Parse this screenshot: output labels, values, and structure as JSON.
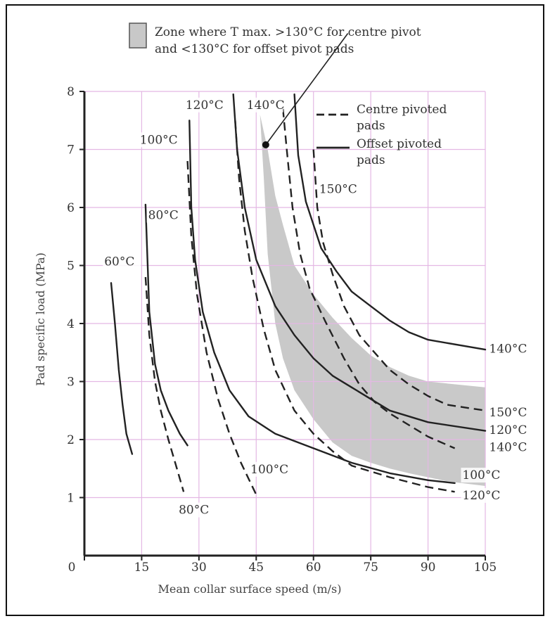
{
  "chart_data": {
    "type": "line",
    "xlabel": "Mean collar surface speed (m/s)",
    "ylabel": "Pad specific load (MPa)",
    "xlim": [
      0,
      105
    ],
    "ylim": [
      0,
      8
    ],
    "x_ticks": [
      "0",
      "15",
      "30",
      "45",
      "60",
      "75",
      "90",
      "105"
    ],
    "y_ticks": [
      "1",
      "2",
      "3",
      "4",
      "5",
      "6",
      "7",
      "8"
    ],
    "grid": true,
    "grid_color": "#e4b8e4",
    "legend": {
      "zone_text_1": "Zone where T max. >130°C for centre pivot",
      "zone_text_2": "and <130°C for offset pivot pads",
      "centre_1": "Centre pivoted",
      "centre_2": "pads",
      "offset_1": "Offset pivoted",
      "offset_2": "pads"
    },
    "zone": {
      "upper": [
        [
          46,
          7.6
        ],
        [
          48,
          7.0
        ],
        [
          50,
          6.2
        ],
        [
          52,
          5.7
        ],
        [
          55,
          5.0
        ],
        [
          60,
          4.5
        ],
        [
          65,
          4.1
        ],
        [
          70,
          3.75
        ],
        [
          75,
          3.45
        ],
        [
          80,
          3.25
        ],
        [
          85,
          3.1
        ],
        [
          90,
          3.0
        ],
        [
          105,
          2.9
        ]
      ],
      "lower": [
        [
          105,
          1.2
        ],
        [
          95,
          1.28
        ],
        [
          90,
          1.35
        ],
        [
          85,
          1.42
        ],
        [
          80,
          1.5
        ],
        [
          75,
          1.6
        ],
        [
          70,
          1.72
        ],
        [
          65,
          1.95
        ],
        [
          60,
          2.35
        ],
        [
          55,
          2.85
        ],
        [
          52,
          3.4
        ],
        [
          50,
          4.0
        ],
        [
          48,
          5.2
        ],
        [
          47,
          6.5
        ],
        [
          46,
          7.6
        ]
      ]
    },
    "series": [
      {
        "style": "solid",
        "points": [
          [
            7,
            4.7
          ],
          [
            8,
            4.0
          ],
          [
            9,
            3.2
          ],
          [
            10,
            2.6
          ],
          [
            11,
            2.1
          ],
          [
            12.5,
            1.75
          ]
        ]
      },
      {
        "style": "solid",
        "points": [
          [
            16,
            6.05
          ],
          [
            17,
            4.2
          ],
          [
            18.5,
            3.3
          ],
          [
            20,
            2.85
          ],
          [
            22,
            2.5
          ],
          [
            25,
            2.1
          ],
          [
            27,
            1.9
          ]
        ]
      },
      {
        "style": "solid",
        "points": [
          [
            27.5,
            7.5
          ],
          [
            28,
            6.0
          ],
          [
            29,
            5.1
          ],
          [
            31,
            4.2
          ],
          [
            34,
            3.5
          ],
          [
            38,
            2.85
          ],
          [
            43,
            2.4
          ],
          [
            50,
            2.1
          ],
          [
            60,
            1.85
          ],
          [
            70,
            1.6
          ],
          [
            80,
            1.42
          ],
          [
            90,
            1.3
          ],
          [
            97,
            1.25
          ]
        ]
      },
      {
        "style": "solid",
        "points": [
          [
            39,
            7.95
          ],
          [
            40,
            7.0
          ],
          [
            42,
            6.0
          ],
          [
            45,
            5.1
          ],
          [
            50,
            4.3
          ],
          [
            55,
            3.8
          ],
          [
            60,
            3.4
          ],
          [
            65,
            3.1
          ],
          [
            70,
            2.9
          ],
          [
            75,
            2.7
          ],
          [
            80,
            2.5
          ],
          [
            90,
            2.3
          ],
          [
            105,
            2.15
          ]
        ]
      },
      {
        "style": "solid",
        "points": [
          [
            55,
            7.95
          ],
          [
            56,
            6.9
          ],
          [
            58,
            6.1
          ],
          [
            62,
            5.3
          ],
          [
            66,
            4.9
          ],
          [
            70,
            4.55
          ],
          [
            75,
            4.3
          ],
          [
            80,
            4.05
          ],
          [
            85,
            3.85
          ],
          [
            90,
            3.72
          ],
          [
            105,
            3.55
          ]
        ]
      },
      {
        "style": "dashed",
        "points": [
          [
            16,
            4.8
          ],
          [
            17,
            3.8
          ],
          [
            18.5,
            3.0
          ],
          [
            20,
            2.5
          ],
          [
            22,
            2.0
          ],
          [
            24,
            1.55
          ],
          [
            26,
            1.1
          ]
        ]
      },
      {
        "style": "dashed",
        "points": [
          [
            27,
            6.8
          ],
          [
            28,
            5.5
          ],
          [
            29.5,
            4.5
          ],
          [
            32,
            3.5
          ],
          [
            35,
            2.7
          ],
          [
            38,
            2.1
          ],
          [
            41,
            1.6
          ],
          [
            45,
            1.05
          ]
        ]
      },
      {
        "style": "dashed",
        "points": [
          [
            39.5,
            7.5
          ],
          [
            40.5,
            6.5
          ],
          [
            42,
            5.6
          ],
          [
            44,
            4.8
          ],
          [
            47,
            3.9
          ],
          [
            50,
            3.2
          ],
          [
            55,
            2.5
          ],
          [
            60,
            2.1
          ],
          [
            65,
            1.8
          ],
          [
            70,
            1.55
          ],
          [
            80,
            1.35
          ],
          [
            90,
            1.18
          ],
          [
            97,
            1.1
          ]
        ]
      },
      {
        "style": "dashed",
        "points": [
          [
            52,
            7.7
          ],
          [
            53,
            7.0
          ],
          [
            54.5,
            6.0
          ],
          [
            56.5,
            5.2
          ],
          [
            59,
            4.6
          ],
          [
            63,
            4.05
          ],
          [
            68,
            3.4
          ],
          [
            72,
            2.95
          ],
          [
            76,
            2.65
          ],
          [
            80,
            2.45
          ],
          [
            85,
            2.25
          ],
          [
            90,
            2.05
          ],
          [
            97,
            1.85
          ]
        ]
      },
      {
        "style": "dashed",
        "points": [
          [
            60,
            7.0
          ],
          [
            61,
            6.0
          ],
          [
            62.5,
            5.4
          ],
          [
            65,
            4.85
          ],
          [
            68,
            4.3
          ],
          [
            72,
            3.8
          ],
          [
            76,
            3.5
          ],
          [
            80,
            3.2
          ],
          [
            85,
            2.95
          ],
          [
            90,
            2.75
          ],
          [
            95,
            2.6
          ],
          [
            105,
            2.5
          ]
        ]
      }
    ],
    "labels": [
      {
        "text": "60°C",
        "x": 5.2,
        "y": 5.0
      },
      {
        "text": "80°C",
        "x": 16.7,
        "y": 5.8
      },
      {
        "text": "100°C",
        "x": 14.5,
        "y": 7.1
      },
      {
        "text": "120°C",
        "x": 26.5,
        "y": 7.7
      },
      {
        "text": "140°C",
        "x": 42.5,
        "y": 7.7
      },
      {
        "text": "150°C",
        "x": 61.5,
        "y": 6.25
      },
      {
        "text": "80°C",
        "x": 24.7,
        "y": 0.72
      },
      {
        "text": "100°C",
        "x": 43.5,
        "y": 1.42
      },
      {
        "text": "140°C",
        "x": 106,
        "y": 3.5
      },
      {
        "text": "150°C",
        "x": 106,
        "y": 2.4
      },
      {
        "text": "120°C",
        "x": 106,
        "y": 2.1
      },
      {
        "text": "140°C",
        "x": 106,
        "y": 1.8
      },
      {
        "text": "100°C",
        "x": 99,
        "y": 1.32
      },
      {
        "text": "120°C",
        "x": 99,
        "y": 0.97
      }
    ],
    "pointer": {
      "from": [
        47.5,
        7.08
      ],
      "to": [
        69,
        9.0
      ]
    }
  }
}
